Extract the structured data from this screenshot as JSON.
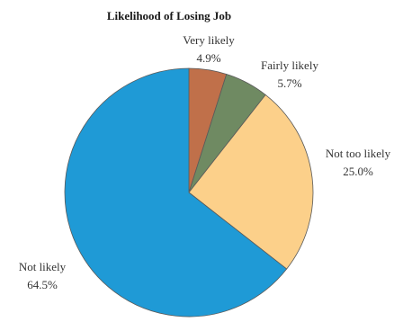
{
  "chart_data": {
    "type": "pie",
    "title": "Likelihood of Losing Job",
    "slices": [
      {
        "label": "Very likely",
        "value": 4.9,
        "value_label": "4.9%",
        "color": "#c0704a"
      },
      {
        "label": "Fairly likely",
        "value": 5.7,
        "value_label": "5.7%",
        "color": "#6f8a62"
      },
      {
        "label": "Not too likely",
        "value": 25.0,
        "value_label": "25.0%",
        "color": "#fcd08a"
      },
      {
        "label": "Not likely",
        "value": 64.5,
        "value_label": "64.5%",
        "color": "#1f9ad6"
      }
    ],
    "start_angle": "12 o'clock",
    "direction": "clockwise"
  }
}
